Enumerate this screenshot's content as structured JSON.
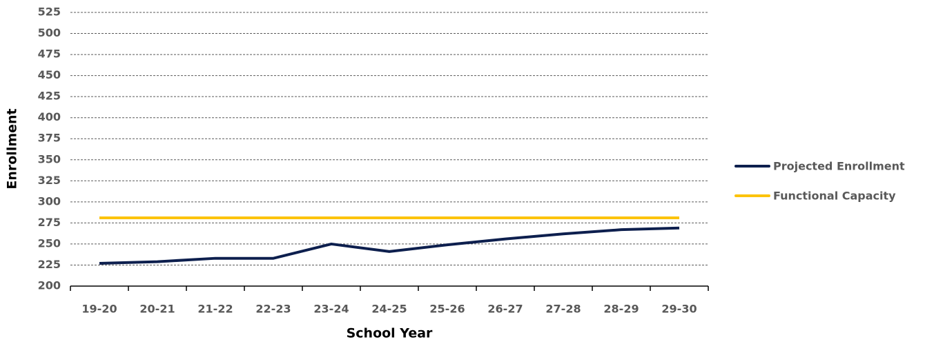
{
  "chart_data": {
    "type": "line",
    "x_label": "School Year",
    "y_label": "Enrollment",
    "categories": [
      "19-20",
      "20-21",
      "21-22",
      "22-23",
      "23-24",
      "24-25",
      "25-26",
      "26-27",
      "27-28",
      "28-29",
      "29-30"
    ],
    "series": [
      {
        "name": "Projected Enrollment",
        "color": "#0d1f4e",
        "values": [
          227,
          229,
          233,
          233,
          250,
          241,
          249,
          256,
          262,
          267,
          269
        ]
      },
      {
        "name": "Functional Capacity",
        "color": "#fcc30b",
        "values": [
          281,
          281,
          281,
          281,
          281,
          281,
          281,
          281,
          281,
          281,
          281
        ]
      }
    ],
    "ylim": [
      200,
      525
    ],
    "yticks": [
      200,
      225,
      250,
      275,
      300,
      325,
      350,
      375,
      400,
      425,
      450,
      475,
      500,
      525
    ],
    "grid": true,
    "legend": "right"
  }
}
